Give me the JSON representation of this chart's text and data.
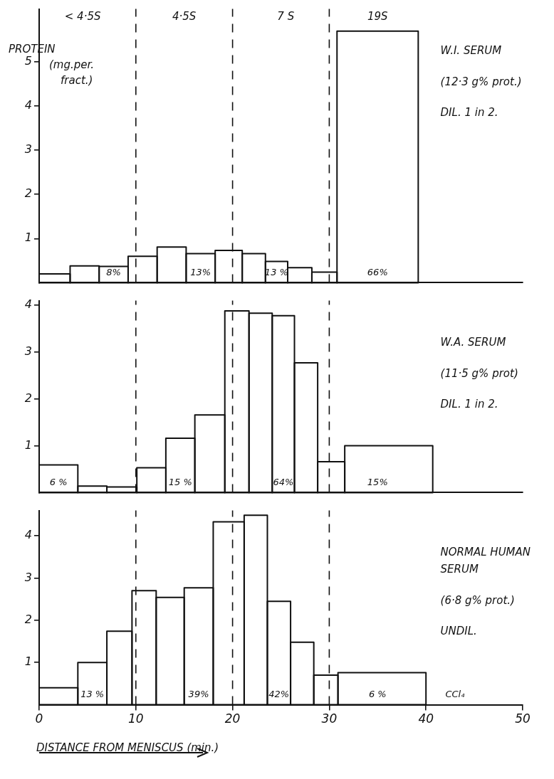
{
  "chart_data": [
    {
      "type": "histogram",
      "ylabel": "PROTEIN (mg.per. fract.)",
      "bins": [
        0,
        3.2,
        6.2,
        9.2,
        12.2,
        15.2,
        18.2,
        21.0,
        23.4,
        25.7,
        28.2,
        30.8,
        39.2
      ],
      "values": [
        0.2,
        0.38,
        0.37,
        0.6,
        0.81,
        0.66,
        0.73,
        0.66,
        0.48,
        0.34,
        0.24,
        5.7
      ],
      "color": "#111111",
      "xlim": [
        0,
        50
      ],
      "ylim": [
        0,
        6.2
      ],
      "yticks": [
        1,
        2,
        3,
        4,
        5
      ],
      "tick_labels": "y",
      "grid": false,
      "legend": false,
      "ref_lines": [
        {
          "axis": "x",
          "value": 10,
          "line_style": "dashed"
        },
        {
          "axis": "x",
          "value": 20,
          "line_style": "dashed"
        },
        {
          "axis": "x",
          "value": 30,
          "line_style": "dashed"
        }
      ],
      "annotations": [
        "< 4·5S",
        "4·5S",
        "7 S",
        "19S",
        "8%",
        "13%",
        "13 %",
        "66%",
        "W.I. SERUM",
        "(12·3 g% prot.)",
        "DIL. 1 in 2."
      ]
    },
    {
      "type": "histogram",
      "bins": [
        0,
        4.0,
        7.0,
        10.1,
        13.1,
        16.1,
        19.2,
        21.7,
        24.1,
        26.4,
        28.8,
        31.6,
        40.7
      ],
      "values": [
        0.59,
        0.14,
        0.12,
        0.53,
        1.16,
        1.66,
        3.88,
        3.83,
        3.78,
        2.77,
        0.66,
        1.0
      ],
      "color": "#111111",
      "xlim": [
        0,
        50
      ],
      "ylim": [
        0,
        4.1
      ],
      "yticks": [
        1,
        2,
        3,
        4
      ],
      "tick_labels": "y",
      "grid": false,
      "legend": false,
      "ref_lines": [
        {
          "axis": "x",
          "value": 10,
          "line_style": "dashed"
        },
        {
          "axis": "x",
          "value": 20,
          "line_style": "dashed"
        },
        {
          "axis": "x",
          "value": 30,
          "line_style": "dashed"
        }
      ],
      "annotations": [
        "6 %",
        "15 %",
        "64%",
        "15%",
        "W.A. SERUM",
        "(11·5 g% prot)",
        "DIL. 1 in 2."
      ]
    },
    {
      "type": "histogram",
      "xlabel": "DISTANCE FROM MENISCUS (min.)",
      "bins": [
        0,
        4.0,
        7.0,
        9.6,
        12.1,
        15.0,
        18.0,
        21.2,
        23.6,
        26.0,
        28.4,
        30.9,
        40
      ],
      "values": [
        0.4,
        1.0,
        1.74,
        2.7,
        2.54,
        2.77,
        4.33,
        4.49,
        2.45,
        1.48,
        0.7,
        0.76
      ],
      "color": "#111111",
      "xlim": [
        0,
        50
      ],
      "xticks": [
        0,
        10,
        20,
        30,
        40,
        50
      ],
      "ylim": [
        0,
        4.6
      ],
      "yticks": [
        1,
        2,
        3,
        4
      ],
      "grid": false,
      "legend": false,
      "ref_lines": [
        {
          "axis": "x",
          "value": 10,
          "line_style": "dashed"
        },
        {
          "axis": "x",
          "value": 20,
          "line_style": "dashed"
        },
        {
          "axis": "x",
          "value": 30,
          "line_style": "dashed"
        }
      ],
      "annotations": [
        "13 %",
        "39%",
        "42%",
        "6 %",
        "CCl₄",
        "NORMAL HUMAN SERUM",
        "(6·8 g% prot.)",
        "UNDIL."
      ]
    }
  ]
}
